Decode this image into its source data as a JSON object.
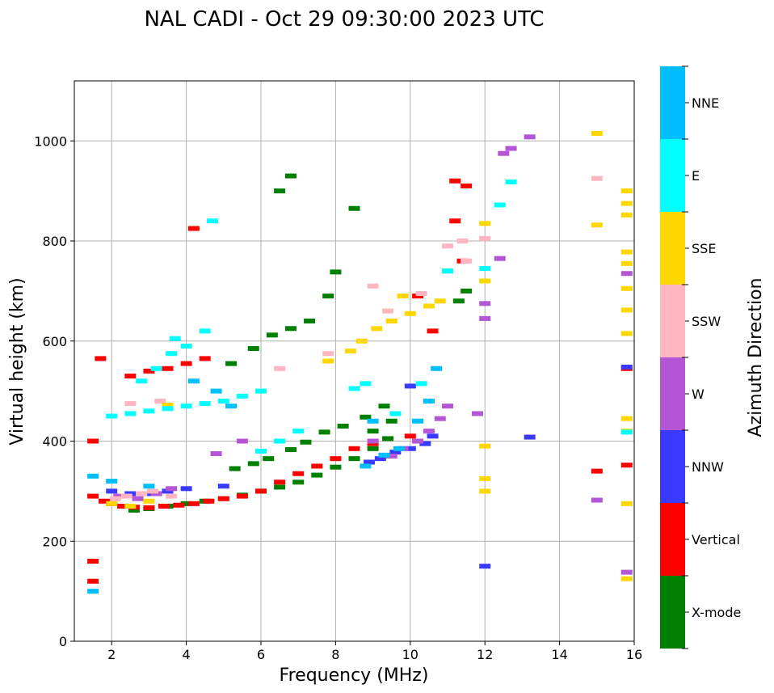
{
  "chart_data": {
    "type": "scatter",
    "title": "NAL CADI - Oct 29 09:30:00 2023 UTC",
    "xlabel": "Frequency (MHz)",
    "ylabel": "Virtual height (km)",
    "xlim": [
      1,
      16
    ],
    "ylim": [
      0,
      1120
    ],
    "xticks": [
      2,
      4,
      6,
      8,
      10,
      12,
      14,
      16
    ],
    "yticks": [
      0,
      200,
      400,
      600,
      800,
      1000
    ],
    "grid": true,
    "colorbar": {
      "label": "Azimuth Direction",
      "categories": [
        "X-mode",
        "Vertical",
        "NNW",
        "W",
        "SSW",
        "SSE",
        "E",
        "NNE"
      ],
      "colors": [
        "#008000",
        "#ff0000",
        "#3a3aff",
        "#b455d6",
        "#ffb6c1",
        "#ffd700",
        "#00ffff",
        "#00bfff"
      ]
    },
    "series": [
      {
        "name": "X-mode",
        "points": [
          [
            2.6,
            262
          ],
          [
            3.0,
            265
          ],
          [
            3.5,
            270
          ],
          [
            4.0,
            275
          ],
          [
            4.5,
            280
          ],
          [
            5.0,
            285
          ],
          [
            5.5,
            292
          ],
          [
            6.0,
            300
          ],
          [
            6.5,
            308
          ],
          [
            7.0,
            318
          ],
          [
            7.5,
            332
          ],
          [
            8.0,
            348
          ],
          [
            8.5,
            365
          ],
          [
            9.0,
            385
          ],
          [
            9.4,
            405
          ],
          [
            5.3,
            345
          ],
          [
            5.8,
            355
          ],
          [
            6.2,
            365
          ],
          [
            6.8,
            383
          ],
          [
            7.2,
            398
          ],
          [
            7.7,
            418
          ],
          [
            8.2,
            430
          ],
          [
            8.8,
            448
          ],
          [
            9.3,
            470
          ],
          [
            5.2,
            555
          ],
          [
            5.8,
            585
          ],
          [
            6.3,
            612
          ],
          [
            6.8,
            625
          ],
          [
            7.3,
            640
          ],
          [
            7.8,
            690
          ],
          [
            8.0,
            738
          ],
          [
            6.5,
            900
          ],
          [
            6.8,
            930
          ],
          [
            8.5,
            865
          ],
          [
            11.0,
            740
          ],
          [
            11.3,
            680
          ],
          [
            11.5,
            700
          ],
          [
            9.0,
            420
          ],
          [
            9.5,
            440
          ]
        ]
      },
      {
        "name": "Vertical",
        "points": [
          [
            1.5,
            290
          ],
          [
            1.8,
            280
          ],
          [
            2.0,
            275
          ],
          [
            2.3,
            270
          ],
          [
            2.6,
            268
          ],
          [
            3.0,
            267
          ],
          [
            3.4,
            270
          ],
          [
            3.8,
            272
          ],
          [
            4.2,
            275
          ],
          [
            4.6,
            280
          ],
          [
            5.0,
            285
          ],
          [
            5.5,
            290
          ],
          [
            6.0,
            300
          ],
          [
            6.5,
            318
          ],
          [
            7.0,
            335
          ],
          [
            7.5,
            350
          ],
          [
            8.0,
            365
          ],
          [
            8.5,
            385
          ],
          [
            9.0,
            395
          ],
          [
            1.5,
            400
          ],
          [
            1.5,
            160
          ],
          [
            1.5,
            120
          ],
          [
            2.5,
            530
          ],
          [
            3.0,
            540
          ],
          [
            3.5,
            545
          ],
          [
            4.0,
            555
          ],
          [
            4.5,
            565
          ],
          [
            4.2,
            825
          ],
          [
            11.2,
            920
          ],
          [
            11.5,
            910
          ],
          [
            15.0,
            340
          ],
          [
            15.8,
            545
          ],
          [
            15.8,
            352
          ],
          [
            10.0,
            410
          ],
          [
            1.7,
            565
          ],
          [
            10.2,
            690
          ],
          [
            10.6,
            620
          ],
          [
            11.4,
            760
          ],
          [
            11.2,
            840
          ]
        ]
      },
      {
        "name": "NNW",
        "points": [
          [
            2.0,
            300
          ],
          [
            2.5,
            295
          ],
          [
            3.0,
            295
          ],
          [
            3.5,
            300
          ],
          [
            4.0,
            305
          ],
          [
            5.0,
            310
          ],
          [
            8.9,
            358
          ],
          [
            9.2,
            365
          ],
          [
            9.6,
            378
          ],
          [
            10.0,
            385
          ],
          [
            10.4,
            395
          ],
          [
            10.6,
            410
          ],
          [
            13.2,
            408
          ],
          [
            15.8,
            548
          ],
          [
            12.0,
            150
          ],
          [
            10.0,
            510
          ]
        ]
      },
      {
        "name": "W",
        "points": [
          [
            2.2,
            290
          ],
          [
            2.7,
            285
          ],
          [
            3.2,
            295
          ],
          [
            3.6,
            305
          ],
          [
            4.8,
            375
          ],
          [
            5.5,
            400
          ],
          [
            9.5,
            370
          ],
          [
            9.8,
            385
          ],
          [
            10.2,
            400
          ],
          [
            10.5,
            420
          ],
          [
            10.8,
            445
          ],
          [
            11.0,
            470
          ],
          [
            12.5,
            975
          ],
          [
            12.7,
            985
          ],
          [
            13.2,
            1008
          ],
          [
            15.0,
            282
          ],
          [
            15.8,
            138
          ],
          [
            15.8,
            735
          ],
          [
            12.0,
            675
          ],
          [
            12.0,
            645
          ],
          [
            12.4,
            765
          ],
          [
            11.8,
            455
          ],
          [
            9.0,
            400
          ]
        ]
      },
      {
        "name": "SSW",
        "points": [
          [
            2.1,
            285
          ],
          [
            2.4,
            290
          ],
          [
            2.8,
            295
          ],
          [
            3.1,
            300
          ],
          [
            3.6,
            290
          ],
          [
            2.5,
            475
          ],
          [
            3.3,
            480
          ],
          [
            7.8,
            575
          ],
          [
            9.0,
            710
          ],
          [
            9.4,
            660
          ],
          [
            10.3,
            695
          ],
          [
            11.0,
            790
          ],
          [
            11.5,
            760
          ],
          [
            15.0,
            925
          ],
          [
            12.0,
            805
          ],
          [
            11.4,
            800
          ],
          [
            6.5,
            545
          ]
        ]
      },
      {
        "name": "SSE",
        "points": [
          [
            2.0,
            275
          ],
          [
            2.5,
            270
          ],
          [
            3.0,
            280
          ],
          [
            8.4,
            580
          ],
          [
            8.7,
            600
          ],
          [
            9.1,
            625
          ],
          [
            9.5,
            640
          ],
          [
            10.0,
            655
          ],
          [
            10.5,
            670
          ],
          [
            10.8,
            680
          ],
          [
            15.0,
            1015
          ],
          [
            15.0,
            832
          ],
          [
            15.8,
            900
          ],
          [
            15.8,
            875
          ],
          [
            15.8,
            852
          ],
          [
            15.8,
            778
          ],
          [
            15.8,
            755
          ],
          [
            15.8,
            705
          ],
          [
            15.8,
            662
          ],
          [
            15.8,
            615
          ],
          [
            15.8,
            445
          ],
          [
            15.8,
            420
          ],
          [
            15.8,
            275
          ],
          [
            15.8,
            125
          ],
          [
            12.0,
            835
          ],
          [
            12.0,
            720
          ],
          [
            12.0,
            390
          ],
          [
            12.0,
            325
          ],
          [
            12.0,
            300
          ],
          [
            7.8,
            560
          ],
          [
            3.5,
            472
          ],
          [
            9.8,
            690
          ]
        ]
      },
      {
        "name": "E",
        "points": [
          [
            2.0,
            450
          ],
          [
            2.5,
            455
          ],
          [
            3.0,
            460
          ],
          [
            3.5,
            465
          ],
          [
            4.0,
            470
          ],
          [
            4.5,
            475
          ],
          [
            5.0,
            480
          ],
          [
            5.5,
            490
          ],
          [
            6.0,
            500
          ],
          [
            2.8,
            520
          ],
          [
            3.2,
            545
          ],
          [
            3.6,
            575
          ],
          [
            4.0,
            590
          ],
          [
            4.5,
            620
          ],
          [
            3.7,
            605
          ],
          [
            4.7,
            840
          ],
          [
            6.0,
            380
          ],
          [
            6.5,
            400
          ],
          [
            7.0,
            420
          ],
          [
            8.5,
            505
          ],
          [
            8.8,
            515
          ],
          [
            12.7,
            918
          ],
          [
            12.4,
            872
          ],
          [
            12.0,
            745
          ],
          [
            15.8,
            418
          ],
          [
            11.0,
            740
          ],
          [
            10.3,
            515
          ],
          [
            9.6,
            455
          ]
        ]
      },
      {
        "name": "NNE",
        "points": [
          [
            1.5,
            330
          ],
          [
            1.5,
            100
          ],
          [
            2.0,
            320
          ],
          [
            3.0,
            310
          ],
          [
            4.2,
            520
          ],
          [
            4.8,
            500
          ],
          [
            5.2,
            470
          ],
          [
            8.8,
            350
          ],
          [
            9.3,
            372
          ],
          [
            9.7,
            385
          ],
          [
            10.7,
            545
          ],
          [
            10.5,
            480
          ],
          [
            9.0,
            440
          ],
          [
            10.2,
            440
          ]
        ]
      }
    ]
  }
}
